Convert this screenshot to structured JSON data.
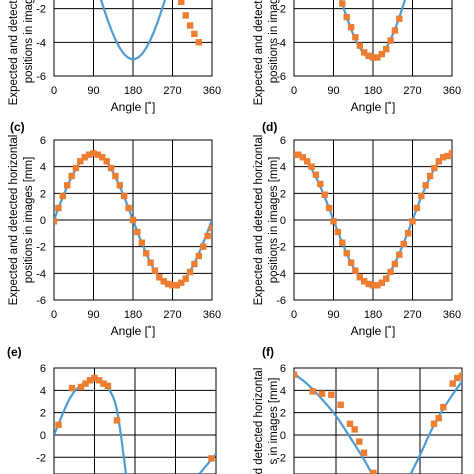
{
  "chart_data": [
    {
      "panel_label": "",
      "type": "line+scatter",
      "xlabel": "Angle [˚]",
      "ylabel": "Expected and detected horizontal positions in images [mm]",
      "ylabel_lines": [
        "Expected and detected horizontal",
        "positions in images [mm]"
      ],
      "x_ticks": [
        "0",
        "90",
        "180",
        "270",
        "360"
      ],
      "y_ticks": [
        "-6",
        "-4",
        "-2"
      ],
      "xlim": [
        0,
        360
      ],
      "ylim": [
        -6,
        6
      ],
      "grid": true,
      "series": [
        {
          "kind": "line",
          "color": "#4e9bd4",
          "function": "5*cos(x)",
          "x": [
            0,
            360
          ]
        },
        {
          "kind": "markers",
          "color": "#ed7d31",
          "x": [
            150,
            160,
            170,
            180,
            190,
            200,
            210,
            220,
            230,
            240,
            250,
            260,
            270,
            280,
            290,
            300,
            310,
            320,
            330
          ],
          "y": [
            4.3,
            4.7,
            4.9,
            4.9,
            4.8,
            4.7,
            4.4,
            3.9,
            3.2,
            2.5,
            1.7,
            0.9,
            0.0,
            -0.8,
            -1.6,
            -2.4,
            -3.0,
            -3.5,
            -4.0
          ]
        }
      ]
    },
    {
      "panel_label": "",
      "type": "line+scatter",
      "xlabel": "Angle [˚]",
      "ylabel": "Expected and detected horizontal positions in images [mm]",
      "ylabel_lines": [
        "Expected and detected horizontal",
        "positions in images [mm]"
      ],
      "x_ticks": [
        "0",
        "90",
        "180",
        "270",
        "360"
      ],
      "y_ticks": [
        "-6",
        "-4",
        "-2"
      ],
      "xlim": [
        0,
        360
      ],
      "ylim": [
        -6,
        6
      ],
      "grid": true,
      "series": [
        {
          "kind": "line",
          "color": "#4e9bd4",
          "function": "5*cos(x)",
          "x": [
            0,
            360
          ]
        },
        {
          "kind": "markers",
          "color": "#ed7d31",
          "x": [
            60,
            70,
            80,
            90,
            100,
            110,
            120,
            130,
            140,
            150,
            160,
            170,
            180,
            190,
            200,
            210,
            220,
            230,
            240
          ],
          "y": [
            2.7,
            1.9,
            0.9,
            0.0,
            -0.9,
            -1.7,
            -2.5,
            -3.1,
            -3.7,
            -4.2,
            -4.6,
            -4.8,
            -4.9,
            -4.9,
            -4.7,
            -4.4,
            -3.9,
            -3.3,
            -2.6
          ]
        }
      ]
    },
    {
      "panel_label": "(c)",
      "type": "line+scatter",
      "xlabel": "Angle [˚]",
      "ylabel": "Expected and detected horizontal positions in images [mm]",
      "ylabel_lines": [
        "Expected and detected horizontal",
        "positions in images [mm]"
      ],
      "x_ticks": [
        "0",
        "90",
        "180",
        "270",
        "360"
      ],
      "y_ticks": [
        "-6",
        "-4",
        "-2",
        "0",
        "2",
        "4",
        "6"
      ],
      "xlim": [
        0,
        360
      ],
      "ylim": [
        -6,
        6
      ],
      "grid": true,
      "series": [
        {
          "kind": "line",
          "color": "#4e9bd4",
          "function": "5*sin(x)",
          "x": [
            0,
            360
          ]
        },
        {
          "kind": "markers",
          "color": "#ed7d31",
          "x": [
            0,
            10,
            20,
            30,
            40,
            50,
            60,
            70,
            80,
            90,
            100,
            110,
            120,
            130,
            140,
            150,
            160,
            170,
            180,
            190,
            200,
            210,
            220,
            230,
            240,
            250,
            260,
            270,
            280,
            290,
            300,
            310,
            320,
            330,
            340,
            350,
            360
          ],
          "y": [
            -0.1,
            0.9,
            1.8,
            2.6,
            3.3,
            3.9,
            4.4,
            4.7,
            4.9,
            5.0,
            4.9,
            4.7,
            4.4,
            3.9,
            3.3,
            2.6,
            1.8,
            0.9,
            0.0,
            -0.9,
            -1.7,
            -2.5,
            -3.2,
            -3.8,
            -4.3,
            -4.6,
            -4.8,
            -4.9,
            -4.9,
            -4.7,
            -4.4,
            -3.9,
            -3.3,
            -2.7,
            -2.0,
            -1.2,
            -0.6
          ]
        }
      ]
    },
    {
      "panel_label": "(d)",
      "type": "line+scatter",
      "xlabel": "Angle [˚]",
      "ylabel": "Expected and detected horizontal positions in images [mm]",
      "ylabel_lines": [
        "Expected and detected horizontal",
        "positions in images [mm]"
      ],
      "x_ticks": [
        "0",
        "90",
        "180",
        "270",
        "360"
      ],
      "y_ticks": [
        "-6",
        "-4",
        "-2",
        "0",
        "2",
        "4",
        "6"
      ],
      "xlim": [
        0,
        360
      ],
      "ylim": [
        -6,
        6
      ],
      "grid": true,
      "series": [
        {
          "kind": "line",
          "color": "#4e9bd4",
          "function": "5*cos(x)",
          "x": [
            0,
            360
          ]
        },
        {
          "kind": "markers",
          "color": "#ed7d31",
          "x": [
            0,
            10,
            20,
            30,
            40,
            50,
            60,
            70,
            80,
            90,
            100,
            110,
            120,
            130,
            140,
            150,
            160,
            170,
            180,
            190,
            200,
            210,
            220,
            230,
            240,
            250,
            260,
            270,
            280,
            290,
            300,
            310,
            320,
            330,
            340,
            350,
            360
          ],
          "y": [
            4.9,
            4.9,
            4.7,
            4.4,
            4.0,
            3.4,
            2.7,
            1.9,
            0.9,
            -0.1,
            -0.9,
            -1.7,
            -2.5,
            -3.2,
            -3.8,
            -4.3,
            -4.6,
            -4.8,
            -4.9,
            -4.9,
            -4.7,
            -4.4,
            -3.9,
            -3.3,
            -2.6,
            -1.8,
            -1.0,
            -0.1,
            0.9,
            1.8,
            2.6,
            3.3,
            3.9,
            4.4,
            4.7,
            4.8,
            5.0
          ]
        }
      ]
    },
    {
      "panel_label": "(e)",
      "type": "line+scatter",
      "xlabel": "",
      "ylabel": "",
      "ylabel_lines": [],
      "x_ticks": [],
      "y_ticks": [
        "-2",
        "0",
        "2",
        "4",
        "6"
      ],
      "xlim": [
        0,
        360
      ],
      "ylim": [
        -3.5,
        6
      ],
      "grid": true,
      "series": [
        {
          "kind": "line",
          "color": "#4e9bd4",
          "x": [
            0,
            40,
            80,
            100,
            120,
            140,
            160
          ],
          "y": [
            0.0,
            3.6,
            4.9,
            4.8,
            4.2,
            2.2,
            -3.5
          ]
        },
        {
          "kind": "line",
          "color": "#4e9bd4",
          "x": [
            323,
            360
          ],
          "y": [
            -3.5,
            -1.7
          ]
        },
        {
          "kind": "markers",
          "color": "#ed7d31",
          "x": [
            10,
            40,
            60,
            70,
            80,
            90,
            100,
            110,
            120,
            140,
            350
          ],
          "y": [
            0.9,
            4.2,
            4.3,
            4.6,
            4.9,
            5.1,
            4.9,
            4.6,
            4.4,
            1.3,
            -2.1
          ]
        }
      ]
    },
    {
      "panel_label": "(f)",
      "type": "line+scatter",
      "xlabel": "",
      "ylabel": "d detected horizontal",
      "ylabel_lines": [
        "d detected horizontal",
        "s in images [mm]"
      ],
      "x_ticks": [],
      "y_ticks": [
        "-2",
        "0",
        "2",
        "4",
        "6"
      ],
      "xlim": [
        0,
        360
      ],
      "ylim": [
        -3.5,
        6
      ],
      "grid": true,
      "series": [
        {
          "kind": "line",
          "color": "#4e9bd4",
          "x": [
            0,
            30,
            60,
            90,
            120,
            150,
            167
          ],
          "y": [
            5.5,
            4.5,
            3.2,
            1.7,
            -0.2,
            -2.2,
            -3.5
          ]
        },
        {
          "kind": "line",
          "color": "#4e9bd4",
          "x": [
            250,
            270,
            300,
            330,
            360
          ],
          "y": [
            -3.5,
            -1.8,
            0.9,
            3.0,
            4.8
          ]
        },
        {
          "kind": "markers",
          "color": "#ed7d31",
          "x": [
            0,
            40,
            60,
            80,
            100,
            120,
            130,
            140,
            150,
            170,
            300,
            310,
            320,
            340,
            350,
            360
          ],
          "y": [
            5.4,
            3.9,
            3.7,
            3.6,
            2.7,
            1.0,
            0.5,
            -0.6,
            -1.6,
            -3.4,
            1.0,
            1.5,
            2.5,
            4.6,
            5.1,
            5.3
          ]
        }
      ]
    }
  ]
}
